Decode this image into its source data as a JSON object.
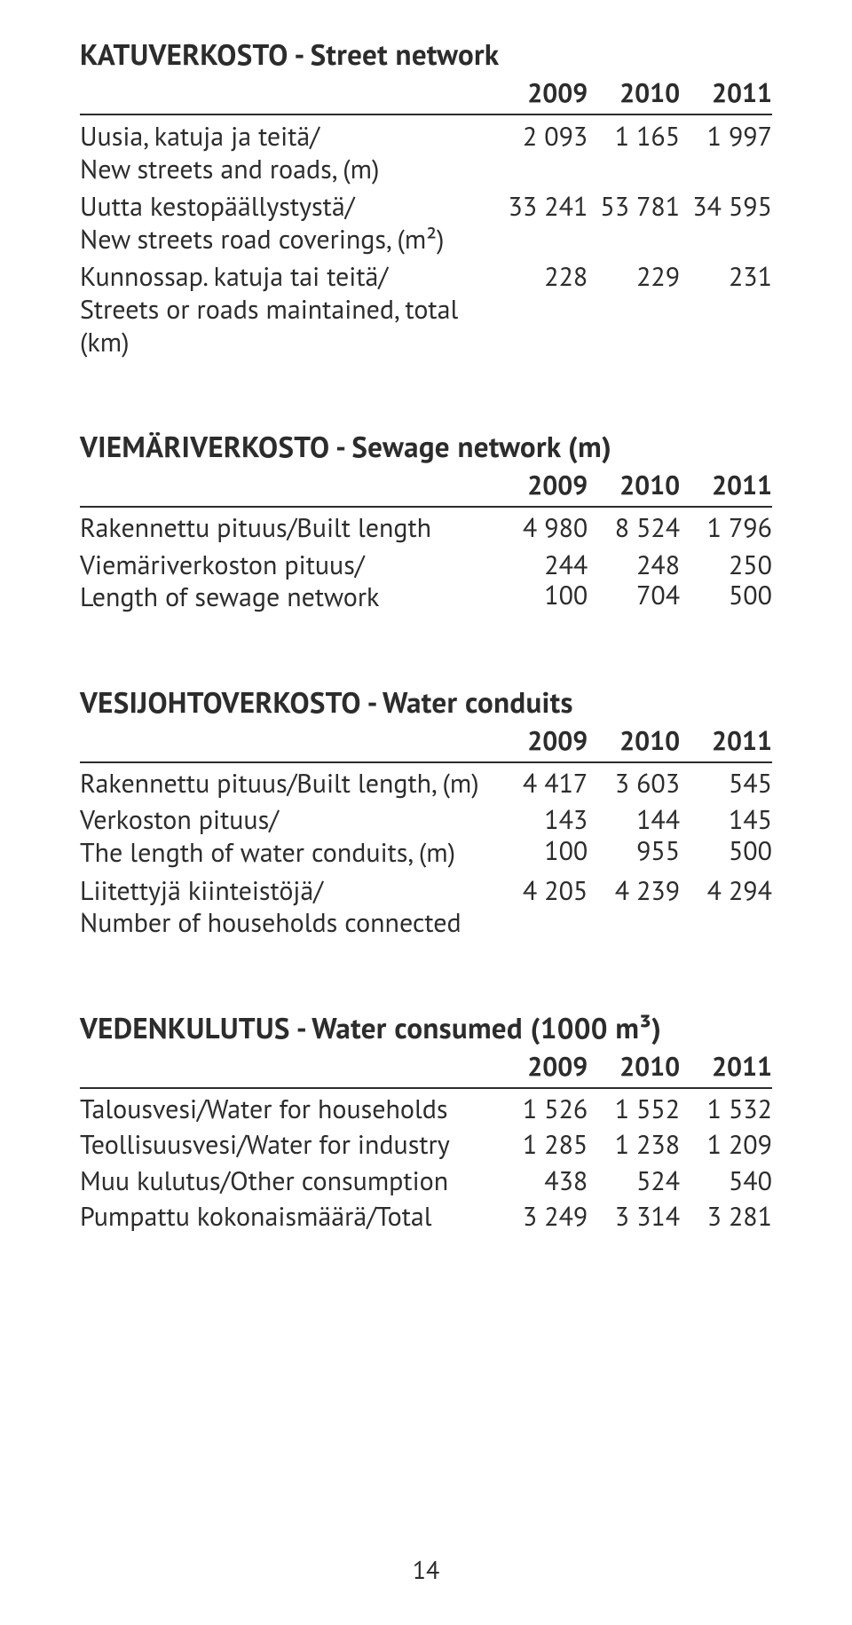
{
  "page_number": "14",
  "sections": {
    "street": {
      "title_caps": "KATUVERKOSTO",
      "title_rest": " - Street network",
      "years": [
        "2009",
        "2010",
        "2011"
      ],
      "rows": {
        "new_streets": {
          "label_fi": "Uusia, katuja ja teitä/",
          "label_en": "New streets and roads, (m)",
          "v": [
            "2 093",
            "1 165",
            "1 997"
          ]
        },
        "new_coverings": {
          "label_fi": "Uutta kestopäällystystä/",
          "label_en": "New streets road coverings, (m²)",
          "v": [
            "33 241",
            "53 781",
            "34 595"
          ]
        },
        "maintained": {
          "label_fi": "Kunnossap. katuja tai teitä/",
          "label_en": "Streets or roads maintained, total (km)",
          "v": [
            "228",
            "229",
            "231"
          ]
        }
      }
    },
    "sewage": {
      "title_caps": "VIEMÄRIVERKOSTO",
      "title_rest": " - Sewage network (m)",
      "years": [
        "2009",
        "2010",
        "2011"
      ],
      "rows": {
        "built": {
          "label": "Rakennettu pituus/Built length",
          "v": [
            "4 980",
            "8 524",
            "1 796"
          ]
        },
        "total": {
          "label_fi": "Viemäriverkoston pituus/",
          "label_en": "Length of sewage network",
          "v": [
            "244 100",
            "248 704",
            "250 500"
          ]
        }
      }
    },
    "water_conduits": {
      "title_caps": "VESIJOHTOVERKOSTO",
      "title_rest": " - Water conduits",
      "years": [
        "2009",
        "2010",
        "2011"
      ],
      "rows": {
        "built": {
          "label": "Rakennettu pituus/Built length, (m)",
          "v": [
            "4 417",
            "3 603",
            "545"
          ]
        },
        "length": {
          "label_fi": "Verkoston pituus/",
          "label_en": "The length of water conduits, (m)",
          "v": [
            "143 100",
            "144 955",
            "145 500"
          ]
        },
        "households": {
          "label_fi": "Liitettyjä kiinteistöjä/",
          "label_en": "Number of households connected",
          "v": [
            "4 205",
            "4 239",
            "4 294"
          ]
        }
      }
    },
    "water_consumed": {
      "title_caps": "VEDENKULUTUS",
      "title_rest": " - Water consumed (1000 m³)",
      "years": [
        "2009",
        "2010",
        "2011"
      ],
      "rows": {
        "households": {
          "label": "Talousvesi/Water for households",
          "v": [
            "1 526",
            "1 552",
            "1 532"
          ]
        },
        "industry": {
          "label": "Teollisuusvesi/Water for industry",
          "v": [
            "1 285",
            "1 238",
            "1 209"
          ]
        },
        "other": {
          "label": "Muu kulutus/Other consumption",
          "v": [
            "438",
            "524",
            "540"
          ]
        },
        "total": {
          "label": "Pumpattu kokonaismäärä/Total",
          "v": [
            "3 249",
            "3 314",
            "3 281"
          ]
        }
      }
    }
  }
}
